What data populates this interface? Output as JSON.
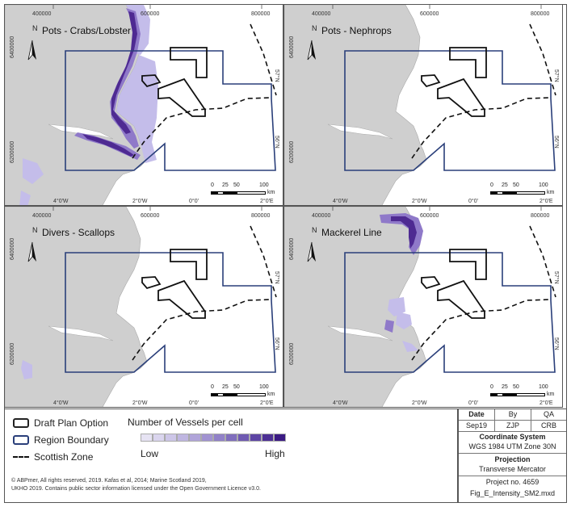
{
  "panels": [
    {
      "title": "Pots - Crabs/Lobster",
      "layer": "crabs"
    },
    {
      "title": "Pots - Nephrops",
      "layer": "none"
    },
    {
      "title": "Divers - Scallops",
      "layer": "divers"
    },
    {
      "title": "Mackerel Line",
      "layer": "mackerel"
    }
  ],
  "axis_ticks": {
    "top": [
      "400000",
      "600000",
      "800000"
    ],
    "bottom": [
      "4°0'W",
      "2°0'W",
      "0°0'",
      "2°0'E"
    ],
    "left": [
      "6400000",
      "6200000"
    ],
    "right": [
      "57°N",
      "56°N"
    ]
  },
  "north_label": "N",
  "scale_bar": {
    "labels": [
      "0",
      "25",
      "50",
      "100"
    ],
    "unit": "km"
  },
  "legend": {
    "draft_plan_option": "Draft Plan Option",
    "region_boundary": "Region Boundary",
    "scottish_zone": "Scottish Zone",
    "vessels_title": "Number of Vessels per cell",
    "low": "Low",
    "high": "High",
    "ramp_colors": [
      "#e6e3f3",
      "#dad5ee",
      "#cdc6e8",
      "#bfb6e1",
      "#b0a4d9",
      "#a193d1",
      "#9181c8",
      "#806ebd",
      "#6f5ab2",
      "#5d45a4",
      "#4c2f94",
      "#3b1a83"
    ]
  },
  "credits": [
    "© ABPmer, All rights reserved, 2019. Kafas et al, 2014; Marine Scotland 2019,",
    "UKHO 2019. Contains public sector information licensed under the Open Government Licence v3.0."
  ],
  "info": {
    "date_label": "Date",
    "by_label": "By",
    "qa_label": "QA",
    "date": "Sep19",
    "by": "ZJP",
    "qa": "CRB",
    "coord_title": "Coordinate System",
    "coord_value": "WGS 1984 UTM Zone 30N",
    "proj_title": "Projection",
    "proj_value": "Transverse Mercator",
    "project_no": "Project no. 4659",
    "file_name": "Fig_E_Intensity_SM2.mxd"
  },
  "colors": {
    "land": "#cfcfcf",
    "sea": "#ffffff",
    "region": "#2a3f7a",
    "plan": "#111111",
    "intensity_light": "#c4bdea",
    "intensity_mid": "#8f79c9",
    "intensity_dark": "#4e2a92"
  }
}
